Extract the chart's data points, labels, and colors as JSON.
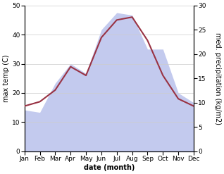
{
  "months": [
    "Jan",
    "Feb",
    "Mar",
    "Apr",
    "May",
    "Jun",
    "Jul",
    "Aug",
    "Sep",
    "Oct",
    "Nov",
    "Dec"
  ],
  "temp_max": [
    15.5,
    17,
    21,
    29,
    26,
    39,
    45,
    46,
    38,
    26,
    18,
    15.5
  ],
  "precipitation": [
    8.5,
    8,
    14,
    18,
    16,
    25,
    28.5,
    28,
    21,
    21,
    12,
    10
  ],
  "temp_ylim": [
    0,
    50
  ],
  "precip_ylim": [
    0,
    30
  ],
  "temp_color": "#993344",
  "precip_fill_color": "#aab4e8",
  "precip_fill_alpha": 0.7,
  "xlabel": "date (month)",
  "ylabel_left": "max temp (C)",
  "ylabel_right": "med. precipitation (kg/m2)",
  "bg_color": "#ffffff",
  "grid_color": "#cccccc",
  "temp_linewidth": 1.5,
  "xlabel_fontsize": 7,
  "ylabel_fontsize": 7,
  "tick_fontsize": 6.5,
  "right_yticks": [
    0,
    5,
    10,
    15,
    20,
    25,
    30
  ],
  "left_yticks": [
    0,
    10,
    20,
    30,
    40,
    50
  ]
}
